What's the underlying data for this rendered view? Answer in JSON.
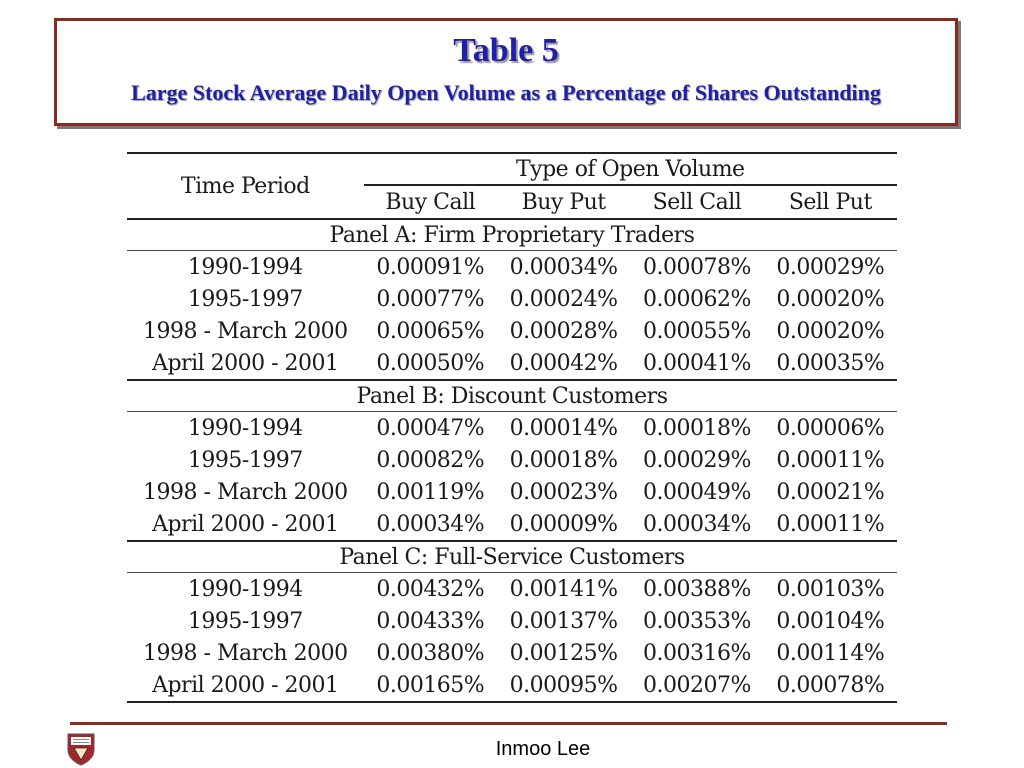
{
  "title": {
    "main": "Table 5",
    "subtitle": "Large Stock Average Daily Open Volume as a Percentage of Shares Outstanding"
  },
  "table": {
    "group_header": "Type of Open Volume",
    "row_header": "Time Period",
    "columns": [
      "Buy Call",
      "Buy Put",
      "Sell Call",
      "Sell Put"
    ],
    "panels": [
      {
        "label": "Panel A:  Firm Proprietary Traders",
        "rows": [
          {
            "period": "1990-1994",
            "values": [
              "0.00091%",
              "0.00034%",
              "0.00078%",
              "0.00029%"
            ]
          },
          {
            "period": "1995-1997",
            "values": [
              "0.00077%",
              "0.00024%",
              "0.00062%",
              "0.00020%"
            ]
          },
          {
            "period": "1998 - March 2000",
            "values": [
              "0.00065%",
              "0.00028%",
              "0.00055%",
              "0.00020%"
            ]
          },
          {
            "period": "April 2000 - 2001",
            "values": [
              "0.00050%",
              "0.00042%",
              "0.00041%",
              "0.00035%"
            ]
          }
        ]
      },
      {
        "label": "Panel B:  Discount Customers",
        "rows": [
          {
            "period": "1990-1994",
            "values": [
              "0.00047%",
              "0.00014%",
              "0.00018%",
              "0.00006%"
            ]
          },
          {
            "period": "1995-1997",
            "values": [
              "0.00082%",
              "0.00018%",
              "0.00029%",
              "0.00011%"
            ]
          },
          {
            "period": "1998 - March 2000",
            "values": [
              "0.00119%",
              "0.00023%",
              "0.00049%",
              "0.00021%"
            ]
          },
          {
            "period": "April 2000 - 2001",
            "values": [
              "0.00034%",
              "0.00009%",
              "0.00034%",
              "0.00011%"
            ]
          }
        ]
      },
      {
        "label": "Panel C:  Full-Service Customers",
        "rows": [
          {
            "period": "1990-1994",
            "values": [
              "0.00432%",
              "0.00141%",
              "0.00388%",
              "0.00103%"
            ]
          },
          {
            "period": "1995-1997",
            "values": [
              "0.00433%",
              "0.00137%",
              "0.00353%",
              "0.00104%"
            ]
          },
          {
            "period": "1998 - March 2000",
            "values": [
              "0.00380%",
              "0.00125%",
              "0.00316%",
              "0.00114%"
            ]
          },
          {
            "period": "April 2000 - 2001",
            "values": [
              "0.00165%",
              "0.00095%",
              "0.00207%",
              "0.00078%"
            ]
          }
        ]
      }
    ]
  },
  "footer": {
    "author": "Inmoo Lee",
    "logo": "university-seal-icon",
    "accent_color": "#8b2a1f"
  }
}
